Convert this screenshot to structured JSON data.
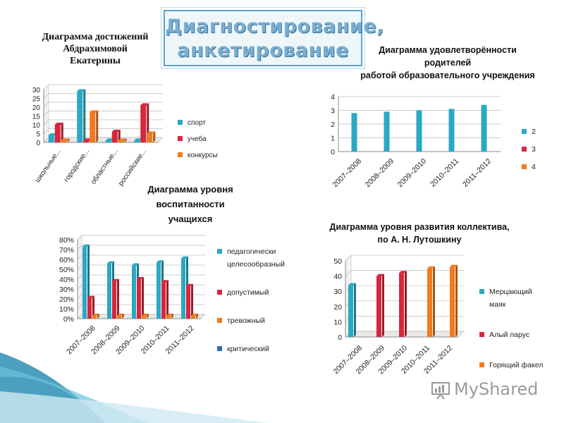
{
  "slide": {
    "title_lines": [
      "Диагностирование,",
      "анкетирование"
    ],
    "logo_text": "MyShared"
  },
  "colors": {
    "teal": "#2aa9c4",
    "red": "#d7263d",
    "orange": "#f07a1e",
    "blue": "#2f6fb5",
    "grid": "#bbbbbb",
    "wave": "#2b8fb4"
  },
  "captions": {
    "c1": [
      "Диаграмма достижений",
      "Абдрахимовой",
      "Екатерины"
    ],
    "c2": [
      "Диаграмма удовлетворённости",
      "родителей",
      "работой образовательного учреждения"
    ],
    "c3": [
      "Диаграмма уровня",
      "воспитанности",
      "учащихся"
    ],
    "c4": [
      "Диаграмма уровня  развития коллектива,",
      "по  А. Н. Лутошкину"
    ]
  },
  "chart_data": [
    {
      "type": "bar",
      "style": "3d",
      "categories": [
        "школьные...",
        "городские...",
        "областные...",
        "российские..."
      ],
      "series": [
        {
          "name": "спорт",
          "color": "#2aa9c4",
          "values": [
            4,
            29,
            1,
            1
          ]
        },
        {
          "name": "учеба",
          "color": "#d7263d",
          "values": [
            10,
            1,
            6,
            21
          ]
        },
        {
          "name": "конкурсы",
          "color": "#f07a1e",
          "values": [
            1,
            17,
            1,
            5
          ]
        }
      ],
      "yticks": [
        "0",
        "5",
        "10",
        "15",
        "20",
        "25",
        "30"
      ],
      "ylim": [
        0,
        30
      ],
      "grid": true,
      "legend": "right"
    },
    {
      "type": "bar",
      "categories": [
        "2007–2008",
        "2008–2009",
        "2009–2010",
        "2010–2011",
        "2011–2012"
      ],
      "series": [
        {
          "name": "2",
          "color": "#2aa9c4",
          "values": [
            2.8,
            2.9,
            3.0,
            3.1,
            3.4
          ]
        },
        {
          "name": "3",
          "color": "#d7263d",
          "values": [
            0,
            0,
            0,
            0,
            0
          ]
        },
        {
          "name": "4",
          "color": "#f07a1e",
          "values": [
            0,
            0,
            0,
            0,
            0
          ]
        }
      ],
      "yticks": [
        "0",
        "1",
        "2",
        "3",
        "4"
      ],
      "ylim": [
        0,
        4
      ],
      "grid": true,
      "legend": "right"
    },
    {
      "type": "bar",
      "style": "3d",
      "categories": [
        "2007–2008",
        "2008–2009",
        "2009–2010",
        "2010–2011",
        "2011–2012"
      ],
      "series": [
        {
          "name": "педагогически целесообразный",
          "legend_lines": [
            "педагогически",
            "целесообразный"
          ],
          "color": "#2aa9c4",
          "values": [
            0.73,
            0.56,
            0.54,
            0.57,
            0.61
          ]
        },
        {
          "name": "допустимый",
          "color": "#d7263d",
          "values": [
            0.21,
            0.38,
            0.4,
            0.37,
            0.33
          ]
        },
        {
          "name": "тревожный",
          "color": "#f07a1e",
          "values": [
            0.03,
            0.03,
            0.03,
            0.03,
            0.03
          ]
        },
        {
          "name": "критический",
          "color": "#2f6fb5",
          "values": [
            0,
            0,
            0,
            0,
            0
          ]
        }
      ],
      "yticks": [
        "0%",
        "10%",
        "20%",
        "30%",
        "40%",
        "50%",
        "60%",
        "70%",
        "80%"
      ],
      "ylim": [
        0,
        0.8
      ],
      "grid": true,
      "legend": "right"
    },
    {
      "type": "bar",
      "style": "3d-cylinder",
      "categories": [
        "2007–2008",
        "2008–2009",
        "2009–2010",
        "2010–2011",
        "2011–2012"
      ],
      "series": [
        {
          "name": "Мерцающий маяк",
          "legend_lines": [
            "Мерцающий",
            "маяк"
          ],
          "color": "#2aa9c4",
          "values": [
            34,
            0,
            0,
            0,
            0
          ]
        },
        {
          "name": "Алый парус",
          "color": "#d7263d",
          "values": [
            0,
            40,
            42,
            0,
            0
          ]
        },
        {
          "name": "Горящий факел",
          "color": "#f07a1e",
          "values": [
            0,
            0,
            0,
            45,
            46
          ]
        }
      ],
      "yticks": [
        "0",
        "10",
        "20",
        "30",
        "40",
        "50"
      ],
      "ylim": [
        0,
        50
      ],
      "grid": true,
      "legend": "right"
    }
  ]
}
